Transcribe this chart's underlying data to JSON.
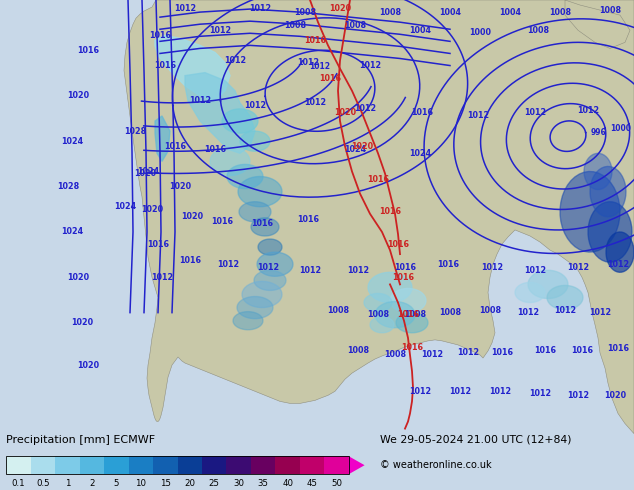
{
  "title_left": "Precipitation [mm] ECMWF",
  "title_right": "We 29-05-2024 21.00 UTC (12+84)",
  "copyright": "© weatheronline.co.uk",
  "colorbar_labels": [
    "0.1",
    "0.5",
    "1",
    "2",
    "5",
    "10",
    "15",
    "20",
    "25",
    "30",
    "35",
    "40",
    "45",
    "50"
  ],
  "colorbar_colors": [
    "#d4f0f0",
    "#aadded",
    "#7dcbe8",
    "#55b8e0",
    "#2a9fd6",
    "#1a7ec4",
    "#1260b0",
    "#0a3e96",
    "#1a1882",
    "#3c0b72",
    "#680060",
    "#960050",
    "#c0006a",
    "#e0009a",
    "#f000c8"
  ],
  "ocean_color": "#c8d8e8",
  "land_color": "#c8c8a8",
  "land_border_color": "#909080",
  "blue_contour": "#2222cc",
  "red_contour": "#cc2222",
  "font_color": "#000000",
  "fig_width": 6.34,
  "fig_height": 4.9,
  "bg_color": "#c8d8e8"
}
